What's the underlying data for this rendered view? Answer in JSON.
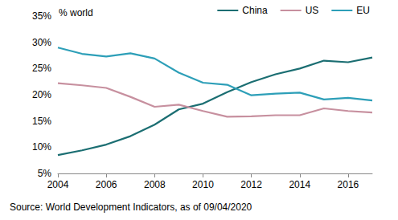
{
  "chart_data": {
    "type": "line",
    "title": "% world",
    "annotations": [
      "Source: World Development Indicators, as of 09/04/2020"
    ],
    "x": [
      2004,
      2005,
      2006,
      2007,
      2008,
      2009,
      2010,
      2011,
      2012,
      2013,
      2014,
      2015,
      2016,
      2017
    ],
    "series": [
      {
        "name": "China",
        "color": "#1b6e72",
        "values": [
          8.5,
          9.4,
          10.5,
          12.1,
          14.3,
          17.2,
          18.3,
          20.5,
          22.4,
          23.9,
          25.0,
          26.5,
          26.2,
          27.1
        ]
      },
      {
        "name": "US",
        "color": "#c7909f",
        "values": [
          22.2,
          21.8,
          21.3,
          19.6,
          17.7,
          18.1,
          16.9,
          15.8,
          15.9,
          16.1,
          16.1,
          17.4,
          16.9,
          16.6
        ]
      },
      {
        "name": "EU",
        "color": "#2d9fb8",
        "values": [
          29.0,
          27.8,
          27.3,
          27.9,
          26.9,
          24.2,
          22.3,
          21.9,
          19.9,
          20.2,
          20.4,
          19.1,
          19.4,
          18.9
        ]
      }
    ],
    "xlim": [
      2004,
      2017
    ],
    "xticks": [
      2004,
      2006,
      2008,
      2010,
      2012,
      2014,
      2016
    ],
    "ylim": [
      5,
      35
    ],
    "yticks": [
      {
        "value": 5,
        "label": "5%"
      },
      {
        "value": 10,
        "label": "10%"
      },
      {
        "value": 15,
        "label": "15%"
      },
      {
        "value": 20,
        "label": "20%"
      },
      {
        "value": 25,
        "label": "25%"
      },
      {
        "value": 30,
        "label": "30%"
      },
      {
        "value": 35,
        "label": "35%"
      }
    ],
    "grid": false,
    "legend": "top-right"
  }
}
